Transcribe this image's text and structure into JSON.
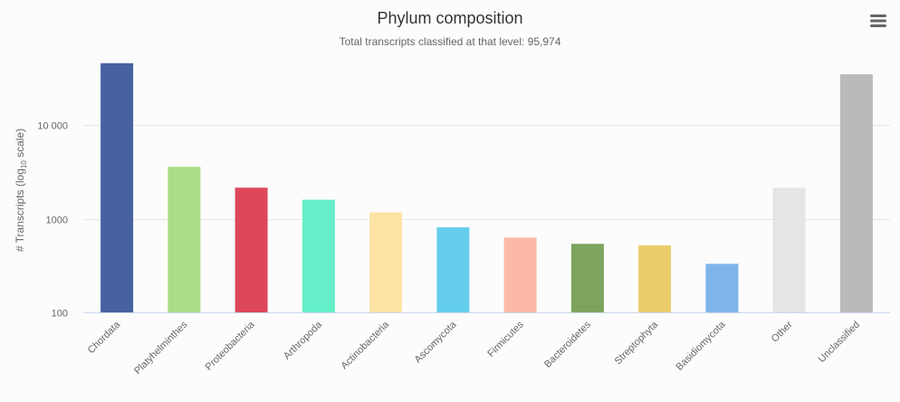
{
  "chart_data": {
    "type": "bar",
    "title": "Phylum composition",
    "subtitle": "Total transcripts classified at that level: 95,974",
    "ylabel": {
      "prefix": "# Transcripts (log",
      "subscript": "10",
      "suffix": " scale)"
    },
    "y_scale": "log",
    "ylim": [
      100,
      49000
    ],
    "ytick_values": [
      100,
      1000,
      10000
    ],
    "ytick_labels": [
      "100",
      "1000",
      "10 000"
    ],
    "grid": true,
    "legend": "none",
    "categories": [
      "Chordata",
      "Platyhelminthes",
      "Proteobacteria",
      "Arthropoda",
      "Actinobacteria",
      "Ascomycota",
      "Firmicutes",
      "Bacteroidetes",
      "Streptophyta",
      "Basidiomycota",
      "Other",
      "Unclassified"
    ],
    "values": [
      46000,
      3600,
      2150,
      1600,
      1170,
      810,
      630,
      540,
      520,
      330,
      2150,
      35000
    ],
    "colors": [
      "#4662a0",
      "#aadd87",
      "#dd475b",
      "#65efc8",
      "#fde4a5",
      "#64cdeb",
      "#fcb9a6",
      "#7da45d",
      "#ebcd6e",
      "#7db5ea",
      "#e5e5e5",
      "#bababa"
    ]
  },
  "ui": {
    "menu_icon": "hamburger-menu-icon"
  }
}
